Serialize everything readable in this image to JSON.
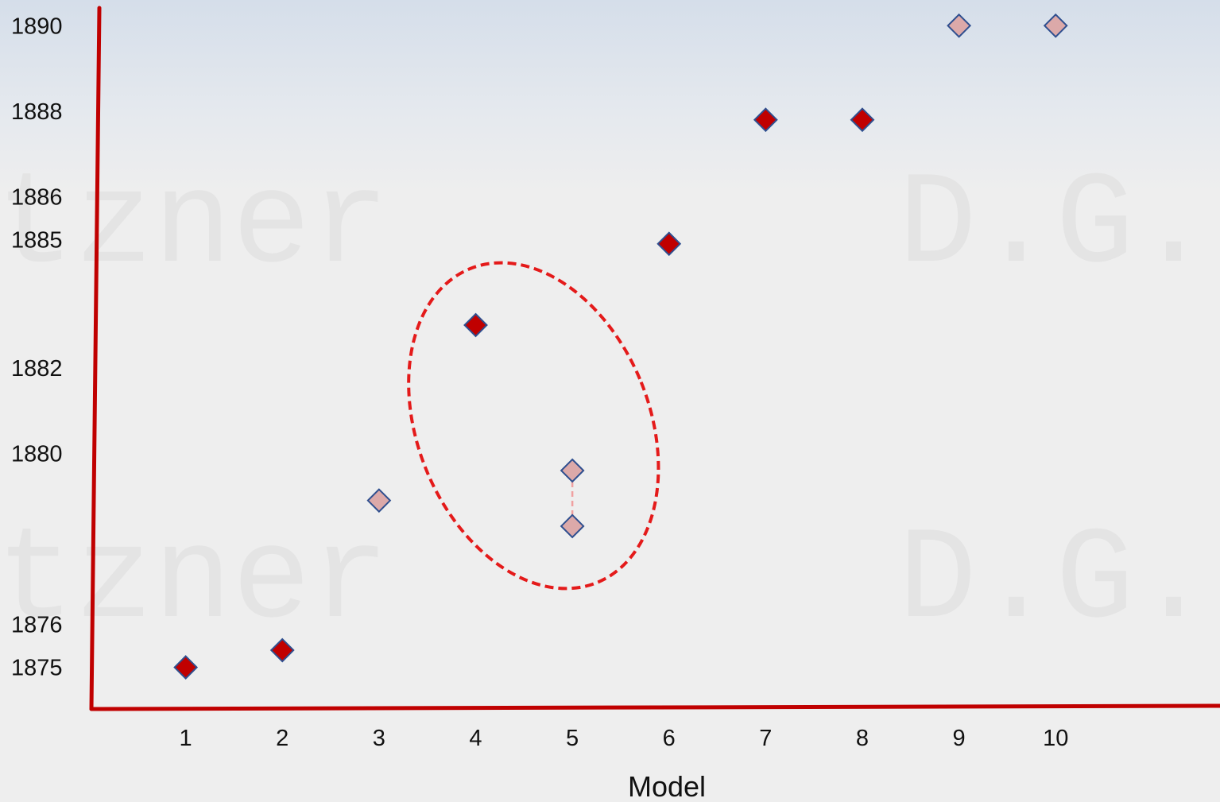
{
  "chart_data": {
    "type": "scatter",
    "xlabel": "Model",
    "ylabel": "",
    "title": "",
    "x_ticks": [
      "1",
      "2",
      "3",
      "4",
      "5",
      "6",
      "7",
      "8",
      "9",
      "10"
    ],
    "y_ticks": [
      "1875",
      "1876",
      "1880",
      "1882",
      "1885",
      "1886",
      "1888",
      "1890"
    ],
    "xlim": [
      0,
      11.7
    ],
    "ylim": [
      1874.1,
      1890.6
    ],
    "grid": false,
    "legend": "none",
    "series": [
      {
        "style": "solid",
        "color": "#c00000",
        "points": [
          {
            "x": 1,
            "y": 1875
          },
          {
            "x": 2,
            "y": 1875.4
          },
          {
            "x": 4,
            "y": 1883
          },
          {
            "x": 6,
            "y": 1884.9
          },
          {
            "x": 7,
            "y": 1887.8
          },
          {
            "x": 8,
            "y": 1887.8
          }
        ]
      },
      {
        "style": "light",
        "color": "#dca9a9",
        "points": [
          {
            "x": 3,
            "y": 1878.9
          },
          {
            "x": 5,
            "y": 1879.6
          },
          {
            "x": 5,
            "y": 1878.3
          },
          {
            "x": 9,
            "y": 1890
          },
          {
            "x": 10,
            "y": 1890
          }
        ]
      }
    ],
    "annotations": [
      {
        "type": "dashed-ellipse",
        "color": "#e41a1a",
        "encloses": [
          "4 / 1883",
          "5 / 1879.6",
          "5 / 1878.3"
        ]
      },
      {
        "type": "dashed-connector",
        "color": "#f0a0a0",
        "from": {
          "x": 5,
          "y": 1879.6
        },
        "to": {
          "x": 5,
          "y": 1878.3
        }
      }
    ],
    "axis_color": "#c00000",
    "marker_outline": "#2f4f8f",
    "watermark": [
      "tzner",
      "D.G."
    ]
  }
}
